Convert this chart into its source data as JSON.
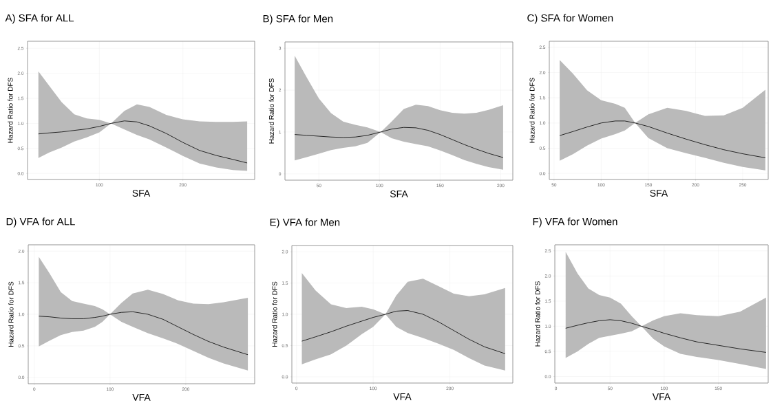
{
  "chart_data": [
    {
      "type": "line",
      "title": "A) SFA for ALL",
      "xlabel": "SFA",
      "ylabel": "Hazard Ratio for DFS",
      "xlim": [
        14,
        286
      ],
      "ylim": [
        -0.12,
        2.64
      ],
      "xticks": [
        100,
        200
      ],
      "yticks": [
        {
          "value": 0,
          "label": "0.0"
        },
        {
          "value": 0.5,
          "label": "0.5"
        },
        {
          "value": 1,
          "label": "1.0"
        },
        {
          "value": 1.5,
          "label": "1.5"
        },
        {
          "value": 2,
          "label": "2.0"
        },
        {
          "value": 2.5,
          "label": "2.5"
        }
      ],
      "grid": true,
      "series": [
        {
          "color": "#000000",
          "x": [
            27,
            40,
            55,
            70,
            85,
            100,
            114,
            130,
            145,
            160,
            180,
            200,
            220,
            240,
            260,
            277
          ],
          "values": [
            0.79,
            0.81,
            0.83,
            0.86,
            0.89,
            0.94,
            1.0,
            1.05,
            1.03,
            0.95,
            0.8,
            0.62,
            0.46,
            0.36,
            0.28,
            0.21
          ],
          "lower": [
            0.31,
            0.42,
            0.52,
            0.64,
            0.72,
            0.82,
            1.0,
            0.88,
            0.77,
            0.68,
            0.52,
            0.35,
            0.2,
            0.12,
            0.07,
            0.05
          ],
          "upper": [
            2.04,
            1.75,
            1.42,
            1.18,
            1.1,
            1.07,
            1.0,
            1.25,
            1.38,
            1.33,
            1.17,
            1.08,
            1.04,
            1.03,
            1.03,
            1.04
          ]
        }
      ]
    },
    {
      "type": "line",
      "title": "B) SFA for Men",
      "xlabel": "SFA",
      "ylabel": "Hazard Ratio for DFS",
      "xlim": [
        22,
        210
      ],
      "ylim": [
        -0.15,
        3.15
      ],
      "xticks": [
        50,
        100,
        150,
        200
      ],
      "yticks": [
        0,
        1,
        2,
        3
      ],
      "grid": true,
      "series": [
        {
          "color": "#000000",
          "x": [
            30,
            40,
            50,
            60,
            70,
            80,
            90,
            101,
            110,
            120,
            130,
            140,
            150,
            160,
            170,
            180,
            190,
            202
          ],
          "values": [
            0.94,
            0.92,
            0.9,
            0.88,
            0.87,
            0.88,
            0.92,
            1.0,
            1.07,
            1.11,
            1.1,
            1.04,
            0.94,
            0.82,
            0.7,
            0.59,
            0.49,
            0.39
          ],
          "lower": [
            0.32,
            0.4,
            0.48,
            0.57,
            0.62,
            0.66,
            0.74,
            1.0,
            0.85,
            0.77,
            0.71,
            0.66,
            0.56,
            0.45,
            0.33,
            0.24,
            0.16,
            0.1
          ],
          "upper": [
            2.82,
            2.3,
            1.8,
            1.45,
            1.25,
            1.17,
            1.11,
            1.0,
            1.25,
            1.55,
            1.65,
            1.62,
            1.52,
            1.46,
            1.44,
            1.46,
            1.53,
            1.64
          ]
        }
      ]
    },
    {
      "type": "line",
      "title": "C) SFA for Women",
      "xlabel": "SFA",
      "ylabel": "Hazard Ratio for DFS",
      "xlim": [
        45,
        277
      ],
      "ylim": [
        -0.12,
        2.62
      ],
      "xticks": [
        50,
        100,
        150,
        200,
        250
      ],
      "yticks": [
        {
          "value": 0,
          "label": "0.0"
        },
        {
          "value": 0.5,
          "label": "0.5"
        },
        {
          "value": 1,
          "label": "1.0"
        },
        {
          "value": 1.5,
          "label": "1.5"
        },
        {
          "value": 2,
          "label": "2.0"
        },
        {
          "value": 2.5,
          "label": "2.5"
        }
      ],
      "grid": true,
      "series": [
        {
          "color": "#000000",
          "x": [
            56,
            70,
            85,
            100,
            115,
            125,
            136,
            150,
            170,
            190,
            210,
            230,
            250,
            274
          ],
          "values": [
            0.75,
            0.83,
            0.92,
            1.0,
            1.04,
            1.04,
            1.0,
            0.93,
            0.8,
            0.68,
            0.57,
            0.47,
            0.39,
            0.31
          ],
          "lower": [
            0.25,
            0.38,
            0.55,
            0.69,
            0.78,
            0.85,
            1.0,
            0.7,
            0.5,
            0.4,
            0.31,
            0.21,
            0.13,
            0.06
          ],
          "upper": [
            2.25,
            1.98,
            1.65,
            1.45,
            1.38,
            1.3,
            1.0,
            1.17,
            1.3,
            1.24,
            1.14,
            1.15,
            1.3,
            1.66
          ]
        }
      ]
    },
    {
      "type": "line",
      "title": "D) VFA for ALL",
      "xlabel": "VFA",
      "ylabel": "Hazard Ratio for DFS",
      "xlim": [
        -8,
        291
      ],
      "ylim": [
        -0.1,
        2.1
      ],
      "xticks": [
        0,
        100,
        200
      ],
      "yticks": [
        {
          "value": 0,
          "label": "0.0"
        },
        {
          "value": 0.5,
          "label": "0.5"
        },
        {
          "value": 1,
          "label": "1.0"
        },
        {
          "value": 1.5,
          "label": "1.5"
        },
        {
          "value": 2,
          "label": "2.0"
        }
      ],
      "grid": true,
      "series": [
        {
          "color": "#000000",
          "x": [
            6,
            20,
            35,
            50,
            65,
            80,
            90,
            100,
            115,
            130,
            150,
            170,
            190,
            210,
            230,
            250,
            282
          ],
          "values": [
            0.97,
            0.96,
            0.94,
            0.93,
            0.93,
            0.95,
            0.97,
            1.0,
            1.03,
            1.04,
            1.0,
            0.92,
            0.8,
            0.68,
            0.57,
            0.48,
            0.36
          ],
          "lower": [
            0.49,
            0.58,
            0.67,
            0.72,
            0.74,
            0.8,
            0.88,
            1.0,
            0.88,
            0.8,
            0.7,
            0.62,
            0.53,
            0.42,
            0.31,
            0.22,
            0.11
          ],
          "upper": [
            1.91,
            1.65,
            1.35,
            1.21,
            1.17,
            1.13,
            1.08,
            1.0,
            1.18,
            1.33,
            1.39,
            1.32,
            1.22,
            1.17,
            1.16,
            1.19,
            1.26
          ]
        }
      ]
    },
    {
      "type": "line",
      "title": "E) VFA for Men",
      "xlabel": "VFA",
      "ylabel": "Hazard Ratio for DFS",
      "xlim": [
        -6,
        282
      ],
      "ylim": [
        -0.1,
        2.1
      ],
      "xticks": [
        0,
        100,
        200
      ],
      "yticks": [
        {
          "value": 0,
          "label": "0.0"
        },
        {
          "value": 0.5,
          "label": "0.5"
        },
        {
          "value": 1,
          "label": "1.0"
        },
        {
          "value": 1.5,
          "label": "1.5"
        },
        {
          "value": 2,
          "label": "2.0"
        }
      ],
      "grid": true,
      "series": [
        {
          "color": "#000000",
          "x": [
            7,
            25,
            45,
            65,
            85,
            100,
            116,
            130,
            145,
            165,
            185,
            205,
            225,
            245,
            272
          ],
          "values": [
            0.57,
            0.64,
            0.72,
            0.81,
            0.89,
            0.95,
            1.0,
            1.05,
            1.06,
            1.0,
            0.88,
            0.74,
            0.6,
            0.48,
            0.37
          ],
          "lower": [
            0.2,
            0.28,
            0.36,
            0.5,
            0.68,
            0.8,
            1.0,
            0.8,
            0.7,
            0.62,
            0.53,
            0.43,
            0.3,
            0.18,
            0.1
          ],
          "upper": [
            1.66,
            1.38,
            1.16,
            1.1,
            1.12,
            1.08,
            1.0,
            1.3,
            1.52,
            1.57,
            1.45,
            1.33,
            1.29,
            1.32,
            1.42
          ]
        }
      ]
    },
    {
      "type": "line",
      "title": "F) VFA for Women",
      "xlabel": "VFA",
      "ylabel": "Hazard Ratio for DFS",
      "xlim": [
        -1,
        196
      ],
      "ylim": [
        -0.13,
        2.62
      ],
      "xticks": [
        0,
        50,
        100,
        150
      ],
      "yticks": [
        {
          "value": 0,
          "label": "0.0"
        },
        {
          "value": 0.5,
          "label": "0.5"
        },
        {
          "value": 1,
          "label": "1.0"
        },
        {
          "value": 1.5,
          "label": "1.5"
        },
        {
          "value": 2,
          "label": "2.0"
        },
        {
          "value": 2.5,
          "label": "2.5"
        }
      ],
      "grid": true,
      "series": [
        {
          "color": "#000000",
          "x": [
            9,
            20,
            30,
            40,
            50,
            60,
            70,
            79,
            90,
            100,
            115,
            130,
            150,
            170,
            194
          ],
          "values": [
            0.96,
            1.02,
            1.07,
            1.11,
            1.13,
            1.11,
            1.06,
            1.0,
            0.93,
            0.86,
            0.77,
            0.69,
            0.62,
            0.55,
            0.48
          ],
          "lower": [
            0.37,
            0.5,
            0.65,
            0.77,
            0.81,
            0.85,
            0.9,
            1.0,
            0.75,
            0.6,
            0.45,
            0.39,
            0.33,
            0.25,
            0.15
          ],
          "upper": [
            2.48,
            2.05,
            1.75,
            1.62,
            1.57,
            1.45,
            1.2,
            1.0,
            1.12,
            1.2,
            1.26,
            1.22,
            1.2,
            1.29,
            1.57
          ]
        }
      ]
    }
  ]
}
